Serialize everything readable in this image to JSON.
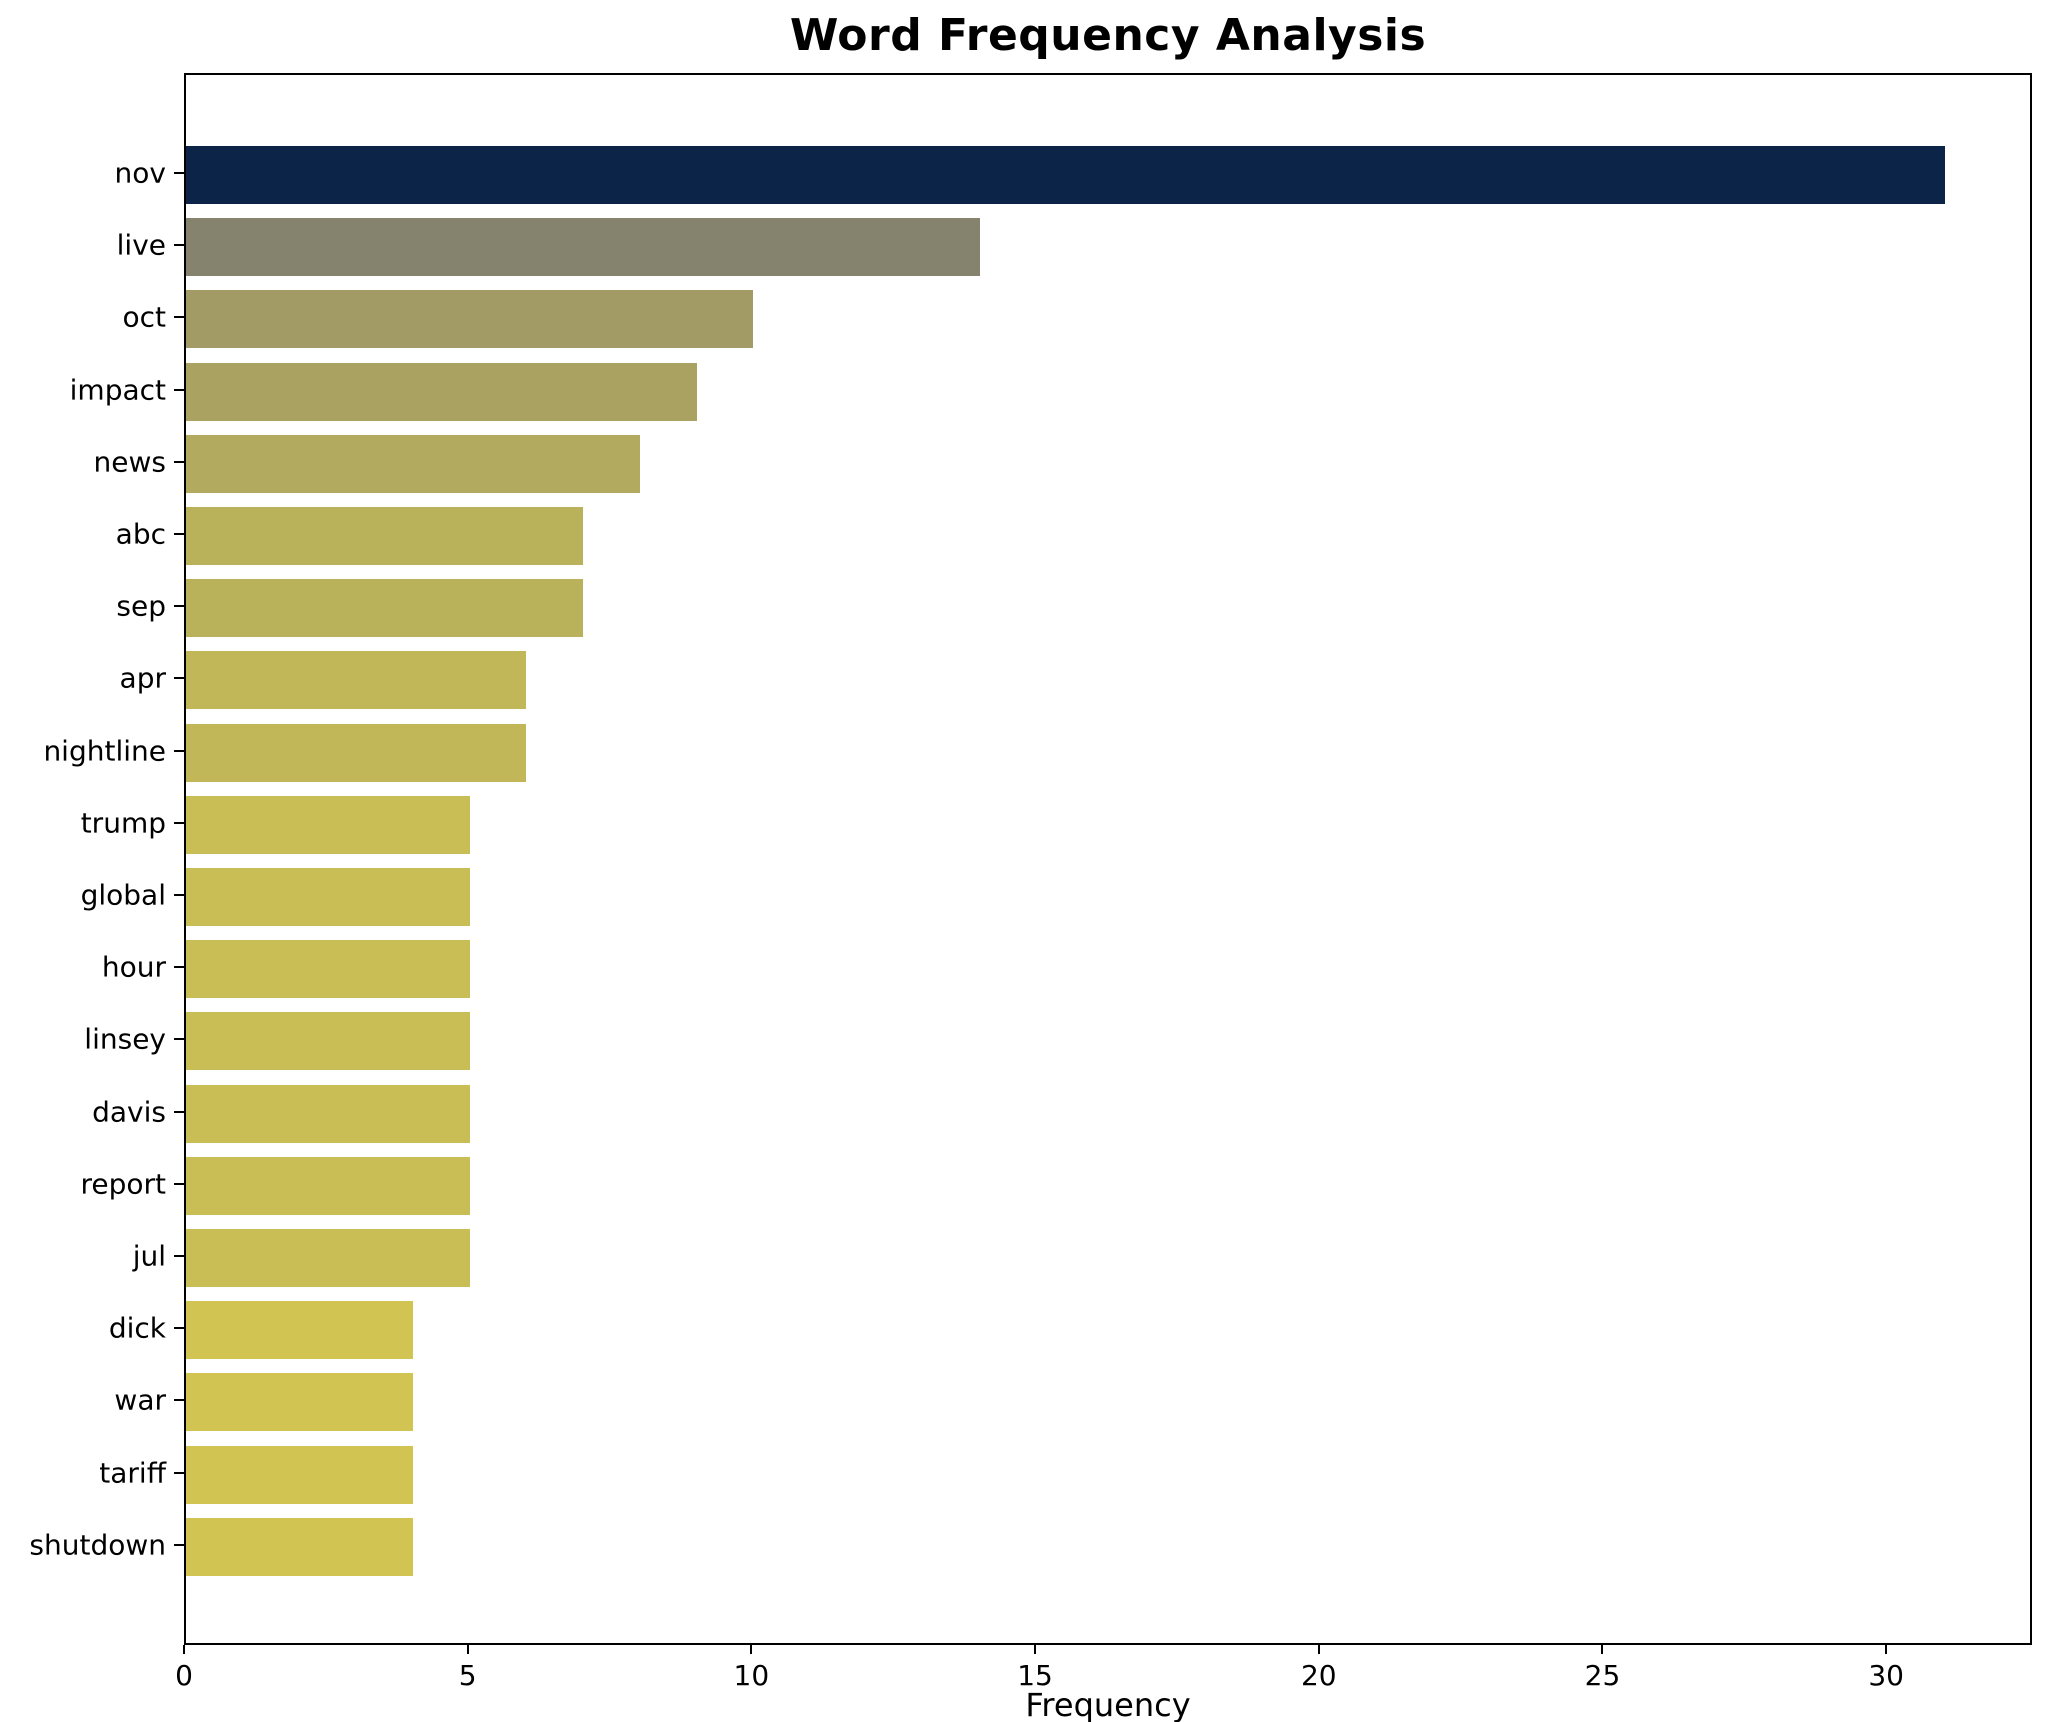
{
  "chart_data": {
    "type": "bar",
    "orientation": "horizontal",
    "title": "Word Frequency Analysis",
    "xlabel": "Frequency",
    "ylabel": "",
    "categories": [
      "nov",
      "live",
      "oct",
      "impact",
      "news",
      "abc",
      "sep",
      "apr",
      "nightline",
      "trump",
      "global",
      "hour",
      "linsey",
      "davis",
      "report",
      "jul",
      "dick",
      "war",
      "tariff",
      "shutdown"
    ],
    "values": [
      31,
      14,
      10,
      9,
      8,
      7,
      7,
      6,
      6,
      5,
      5,
      5,
      5,
      5,
      5,
      5,
      4,
      4,
      4,
      4
    ],
    "bar_colors": [
      "#0b2447",
      "#85826e",
      "#a29b65",
      "#aaa261",
      "#b2aa5e",
      "#bab15b",
      "#bab15b",
      "#c1b759",
      "#c1b759",
      "#c9be56",
      "#c9be56",
      "#c9be56",
      "#c9be56",
      "#c9be56",
      "#c9be56",
      "#c9be56",
      "#d1c453",
      "#d1c453",
      "#d1c453",
      "#d1c453"
    ],
    "xlim": [
      0,
      32.5
    ],
    "xticks": [
      0,
      5,
      10,
      15,
      20,
      25,
      30
    ],
    "grid": false,
    "legend": null,
    "background": "#ffffff",
    "frame_color": "#000000"
  }
}
